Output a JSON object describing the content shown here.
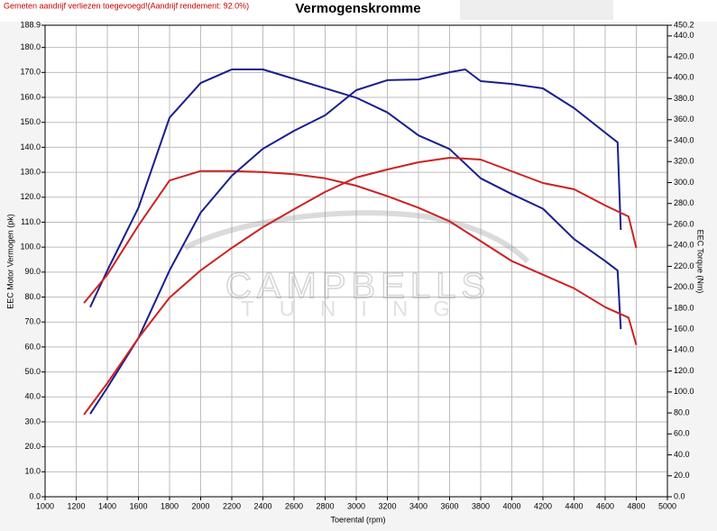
{
  "chart_data": {
    "type": "line",
    "notice": "Gemeten aandrijf verliezen toegevoegd!(Aandrijf rendement: 92.0%)",
    "title": "Vermogenskromme",
    "xlabel": "Toerental (rpm)",
    "ylabel": "EEC Motor Vermogen (pk)",
    "y2label": "EEC Torque (Nm)",
    "watermark": [
      "CAMPBELLS",
      "TUNING"
    ],
    "xlim": [
      1000,
      5000
    ],
    "xticks": [
      1000,
      1200,
      1400,
      1600,
      1800,
      2000,
      2200,
      2400,
      2600,
      2800,
      3000,
      3200,
      3400,
      3600,
      3800,
      4000,
      4200,
      4400,
      4600,
      4800,
      5000
    ],
    "ylim": [
      0,
      188.9
    ],
    "yticks": [
      {
        "value": 0,
        "label": "0.0"
      },
      {
        "value": 10,
        "label": "10.0"
      },
      {
        "value": 20,
        "label": "20.0"
      },
      {
        "value": 30,
        "label": "30.0"
      },
      {
        "value": 40,
        "label": "40.0"
      },
      {
        "value": 50,
        "label": "50.0"
      },
      {
        "value": 60,
        "label": "60.0"
      },
      {
        "value": 70,
        "label": "70.0"
      },
      {
        "value": 80,
        "label": "80.0"
      },
      {
        "value": 90,
        "label": "90.0"
      },
      {
        "value": 100,
        "label": "100.0"
      },
      {
        "value": 110,
        "label": "110.0"
      },
      {
        "value": 120,
        "label": "120.0"
      },
      {
        "value": 130,
        "label": "130.0"
      },
      {
        "value": 140,
        "label": "140.0"
      },
      {
        "value": 150,
        "label": "150.0"
      },
      {
        "value": 160,
        "label": "160.0"
      },
      {
        "value": 170,
        "label": "170.0"
      },
      {
        "value": 180,
        "label": "180.0"
      },
      188.9
    ],
    "y2lim": [
      0,
      450.2
    ],
    "y2ticks": [
      {
        "value": 0,
        "label": "0.0"
      },
      {
        "value": 20,
        "label": "20.0"
      },
      {
        "value": 40,
        "label": "40.0"
      },
      {
        "value": 60,
        "label": "60.0"
      },
      {
        "value": 80,
        "label": "80.0"
      },
      {
        "value": 100,
        "label": "100.0"
      },
      {
        "value": 120,
        "label": "120.0"
      },
      {
        "value": 140,
        "label": "140.0"
      },
      {
        "value": 160,
        "label": "160.0"
      },
      {
        "value": 180,
        "label": "180.0"
      },
      {
        "value": 200,
        "label": "200.0"
      },
      {
        "value": 220,
        "label": "220.0"
      },
      {
        "value": 240,
        "label": "240.0"
      },
      {
        "value": 260,
        "label": "260.0"
      },
      {
        "value": 280,
        "label": "280.0"
      },
      {
        "value": 300,
        "label": "300.0"
      },
      {
        "value": 320,
        "label": "320.0"
      },
      {
        "value": 340,
        "label": "340.0"
      },
      {
        "value": 360,
        "label": "360.0"
      },
      {
        "value": 380,
        "label": "380.0"
      },
      {
        "value": 400,
        "label": "400.0"
      },
      {
        "value": 420,
        "label": "420.0"
      },
      {
        "value": 440,
        "label": "440.0"
      },
      450.2
    ],
    "grid": true,
    "series": [
      {
        "color": "#1a1f8c",
        "axis": "y2",
        "x": [
          1290,
          1400,
          1600,
          1800,
          2000,
          2200,
          2400,
          2600,
          2800,
          3000,
          3200,
          3400,
          3600,
          3800,
          4000,
          4200,
          4400,
          4600,
          4680,
          4700
        ],
        "values": [
          181,
          216,
          276,
          362,
          395,
          408,
          408,
          399,
          390,
          381,
          367,
          345,
          332,
          304,
          289,
          275,
          246,
          225,
          216,
          160
        ]
      },
      {
        "color": "#cc2222",
        "axis": "y2",
        "x": [
          1250,
          1400,
          1600,
          1800,
          2000,
          2200,
          2400,
          2600,
          2800,
          3000,
          3200,
          3400,
          3600,
          3800,
          4000,
          4200,
          4400,
          4600,
          4750,
          4800
        ],
        "values": [
          185,
          212,
          259,
          302,
          311,
          311,
          310,
          308,
          304,
          297,
          287,
          276,
          263,
          244,
          225,
          212,
          199,
          181,
          171,
          145
        ]
      },
      {
        "color": "#1a1f8c",
        "x": [
          1290,
          1400,
          1600,
          1800,
          2000,
          2200,
          2400,
          2600,
          2800,
          3000,
          3200,
          3400,
          3600,
          3700,
          3800,
          4000,
          4200,
          4400,
          4600,
          4680,
          4700
        ],
        "values": [
          33.2,
          43.7,
          63.6,
          90.7,
          113.8,
          128.6,
          139.4,
          146.6,
          152.8,
          162.9,
          166.9,
          167.2,
          170.1,
          171.2,
          166.5,
          165.4,
          163.6,
          155.7,
          145.9,
          142.0,
          106.9
        ]
      },
      {
        "color": "#cc2222",
        "x": [
          1250,
          1400,
          1600,
          1800,
          2000,
          2200,
          2400,
          2600,
          2800,
          3000,
          3200,
          3400,
          3600,
          3800,
          4000,
          4200,
          4400,
          4600,
          4750,
          4800
        ],
        "values": [
          32.9,
          45.5,
          63.6,
          79.8,
          90.7,
          99.7,
          108.0,
          115.2,
          122.1,
          127.9,
          131.1,
          134.0,
          135.8,
          135.1,
          130.4,
          125.7,
          123.2,
          116.7,
          112.3,
          99.7
        ]
      }
    ]
  }
}
